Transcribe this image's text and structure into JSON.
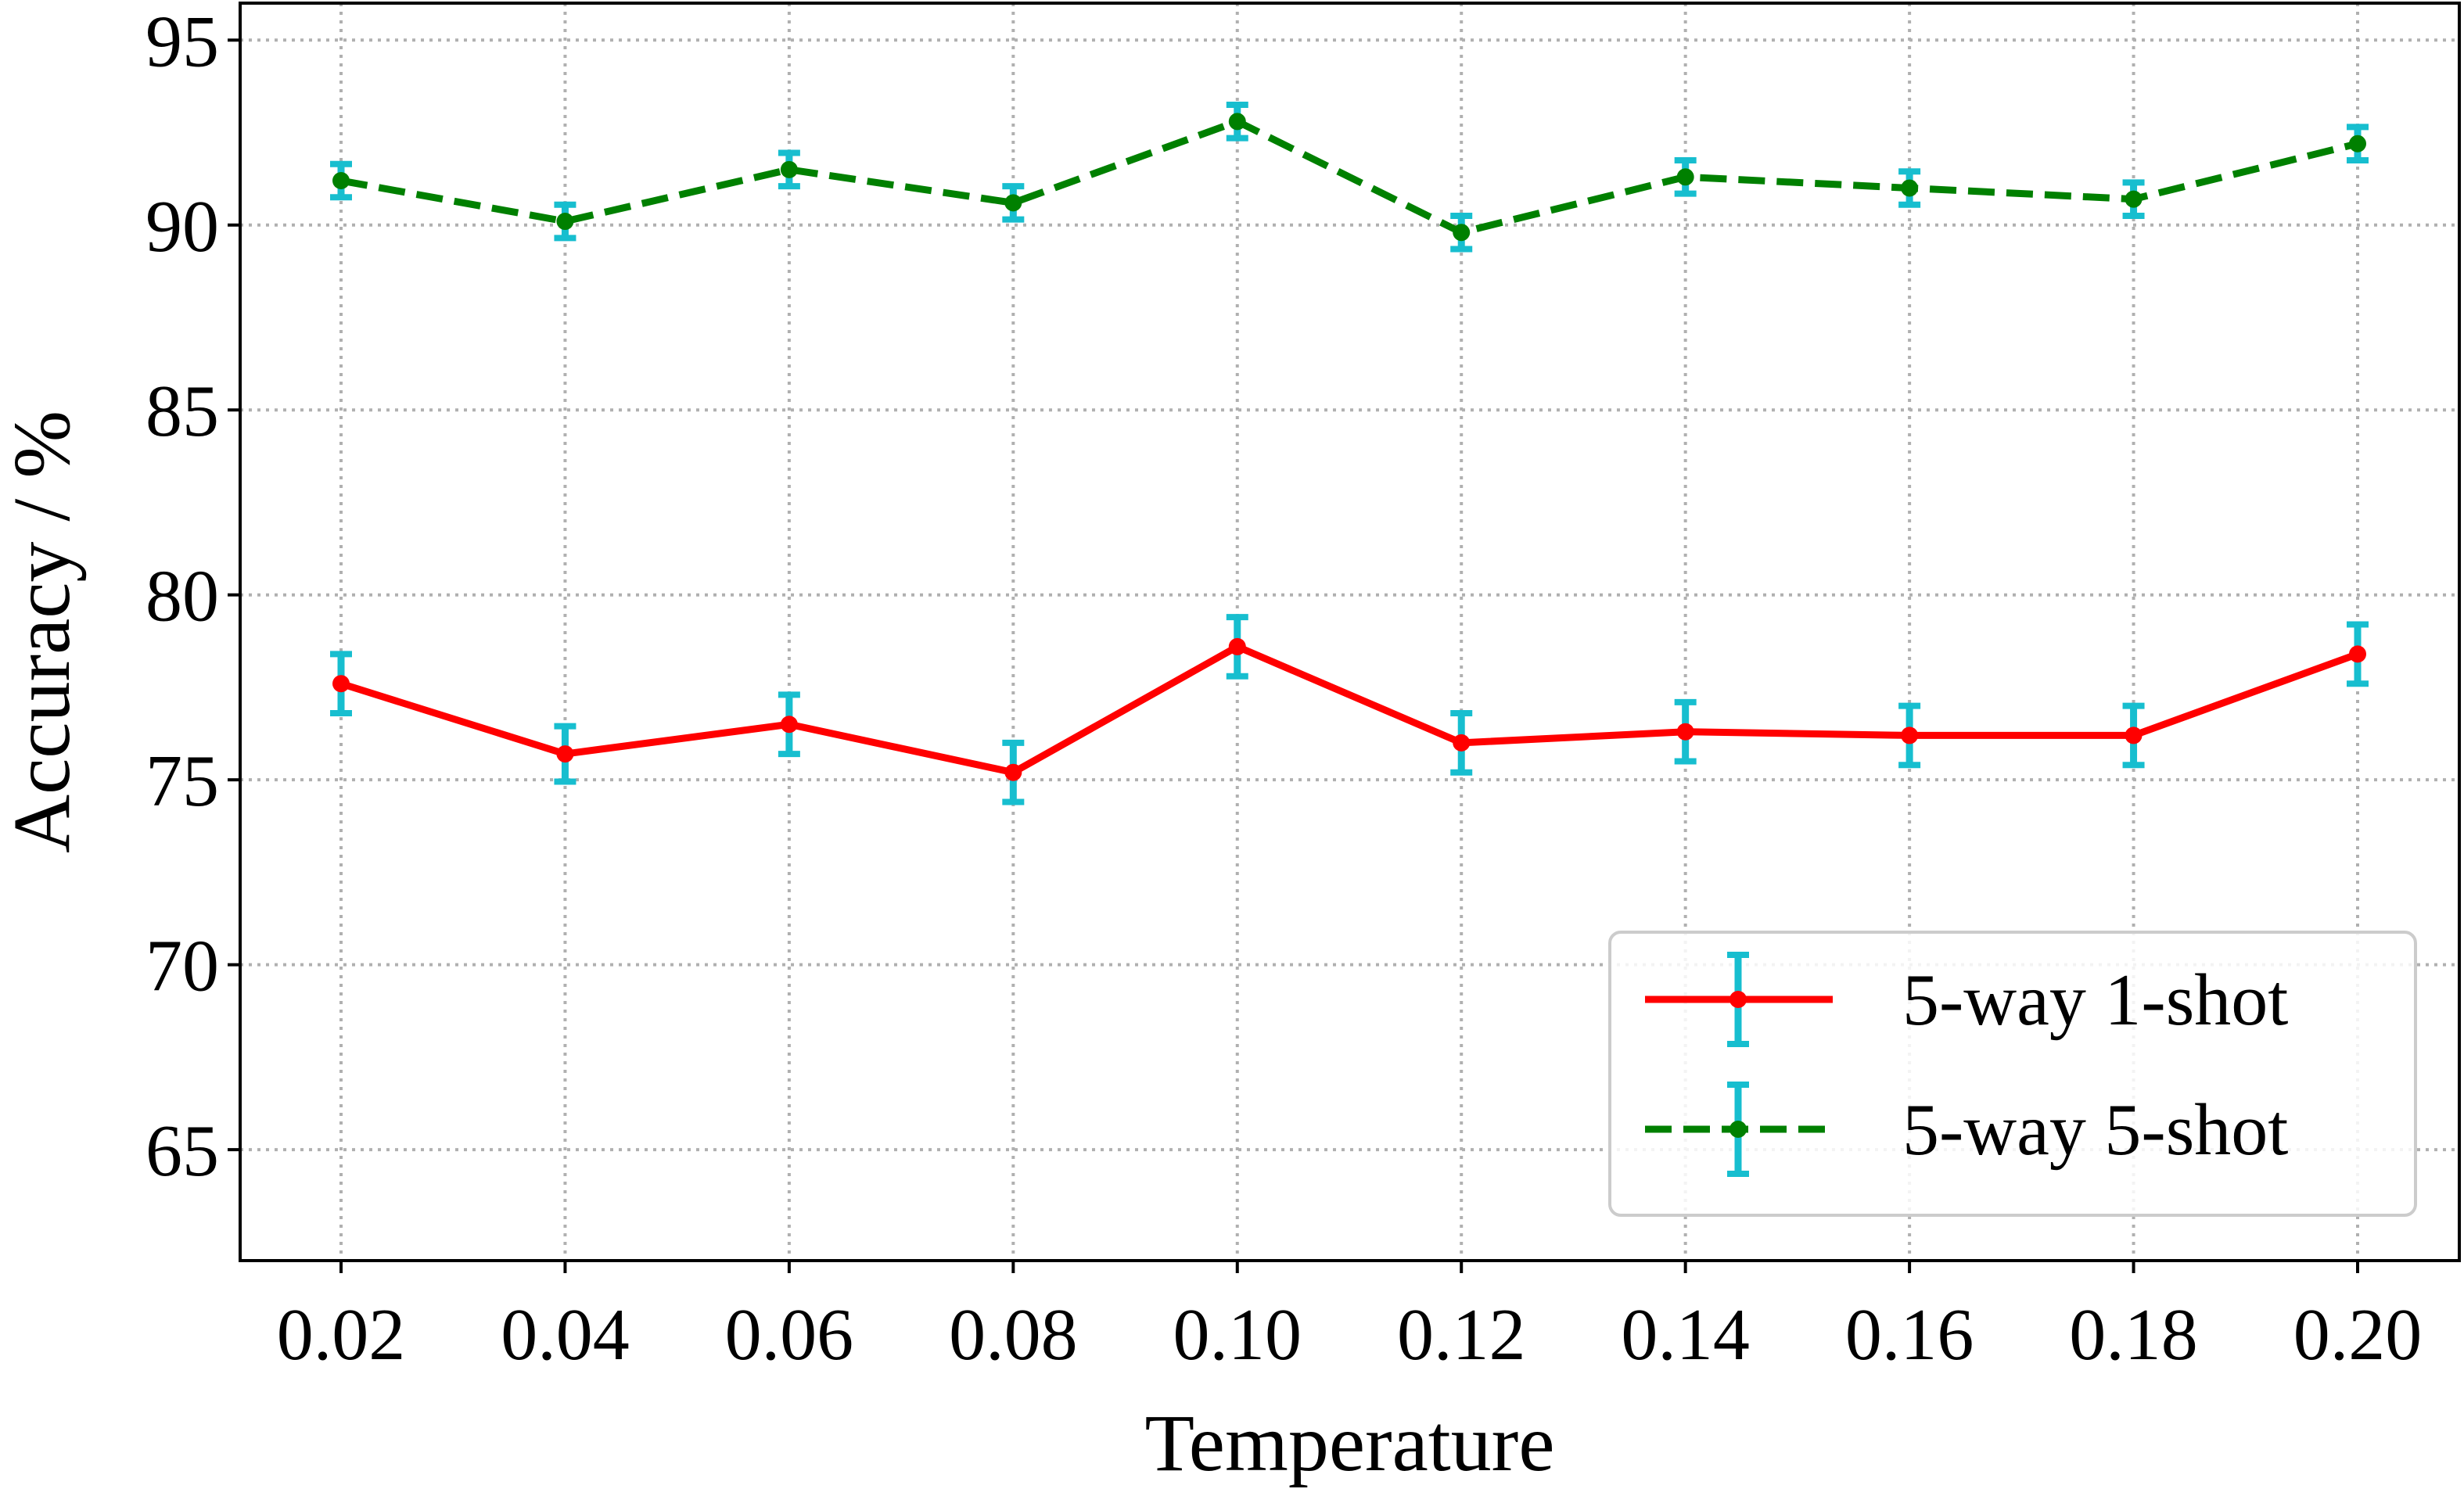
{
  "chart_data": {
    "type": "line",
    "title": "",
    "xlabel": "Temperature",
    "ylabel": "Accuracy / %",
    "x": [
      "0.02",
      "0.04",
      "0.06",
      "0.08",
      "0.10",
      "0.12",
      "0.14",
      "0.16",
      "0.18",
      "0.20"
    ],
    "ylim": [
      62,
      96
    ],
    "yticks": [
      65,
      70,
      75,
      80,
      85,
      90,
      95
    ],
    "grid": true,
    "grid_style": "dotted",
    "legend_position": "lower-right",
    "series": [
      {
        "name": "5-way 1-shot",
        "color": "#ff0000",
        "line_style": "solid",
        "errorbar_color": "#17becf",
        "values": [
          77.6,
          75.7,
          76.5,
          75.2,
          78.6,
          76.0,
          76.3,
          76.2,
          76.2,
          78.4
        ],
        "error": [
          0.8,
          0.75,
          0.8,
          0.8,
          0.8,
          0.8,
          0.8,
          0.8,
          0.8,
          0.8
        ]
      },
      {
        "name": "5-way 5-shot",
        "color": "#008000",
        "line_style": "dashed",
        "errorbar_color": "#17becf",
        "values": [
          91.2,
          90.1,
          91.5,
          90.6,
          92.8,
          89.8,
          91.3,
          91.0,
          90.7,
          92.2
        ],
        "error": [
          0.45,
          0.45,
          0.45,
          0.45,
          0.45,
          0.45,
          0.45,
          0.45,
          0.45,
          0.45
        ]
      }
    ]
  }
}
